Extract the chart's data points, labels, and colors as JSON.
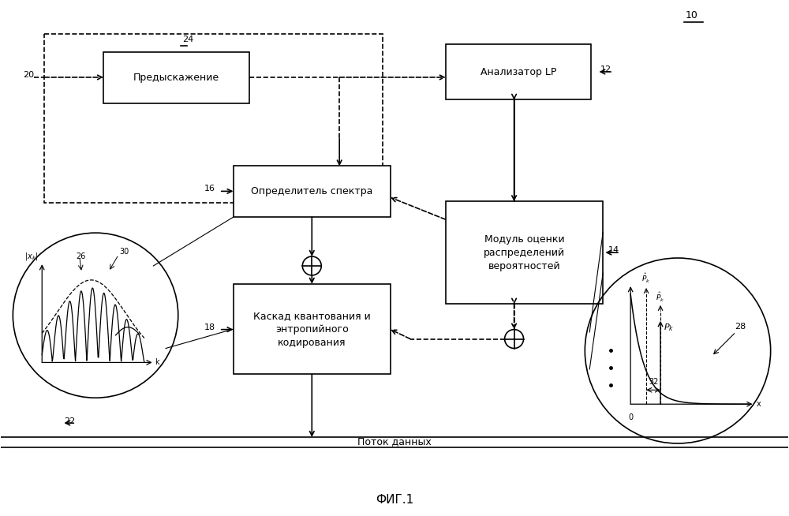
{
  "bg_color": "#ffffff",
  "fig_label": "10",
  "caption": "ФИГ.1",
  "preemphasis_label": "Предыскажение",
  "lp_label": "Анализатор LP",
  "spectrum_label": "Определитель спектра",
  "prob_label": "Модуль оценки\nраспределений\nвероятностей",
  "cascade_label": "Каскад квантования и\nэнтропийного\nкодирования",
  "datastream_label": "Поток данных"
}
